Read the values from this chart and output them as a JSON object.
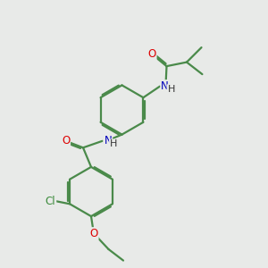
{
  "bg_color": "#e8eae8",
  "bond_color": "#4a8a4a",
  "bond_width": 1.6,
  "dbo": 0.055,
  "atom_colors": {
    "O": "#dd0000",
    "N": "#0000bb",
    "Cl": "#3a8a3a",
    "H": "#111111"
  },
  "font_size": 8.5,
  "fig_size": [
    3.0,
    3.0
  ],
  "dpi": 100,
  "xlim": [
    0,
    10
  ],
  "ylim": [
    0,
    10
  ]
}
